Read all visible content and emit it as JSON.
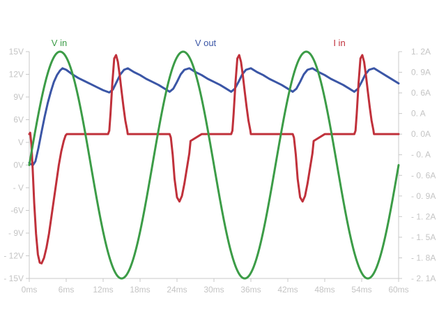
{
  "chart_data": {
    "type": "line",
    "title": "",
    "xlabel": "",
    "ylabel": "",
    "y2label": "",
    "grid": false,
    "legend": "top, above each series",
    "x_unit": "ms",
    "xlim": [
      0,
      60
    ],
    "ylim": [
      -15,
      15
    ],
    "y2lim": [
      -2.1,
      1.2
    ],
    "x_ticks": [
      0,
      6,
      12,
      18,
      24,
      30,
      36,
      42,
      48,
      54,
      60
    ],
    "x_tick_labels": [
      "0ms",
      "6ms",
      "12ms",
      "18ms",
      "24ms",
      "30ms",
      "36ms",
      "42ms",
      "48ms",
      "54ms",
      "60ms"
    ],
    "y_ticks": [
      15,
      12,
      9,
      6,
      3,
      0,
      -3,
      -6,
      -9,
      -12,
      -15
    ],
    "y_tick_labels": [
      "15V",
      "12V",
      "9V",
      "6V",
      "V",
      "0V",
      "-   V",
      "-6V",
      "- 9V",
      "- 12V",
      "- 15V"
    ],
    "y2_ticks": [
      1.2,
      0.9,
      0.6,
      0.3,
      0.0,
      -0.3,
      -0.6,
      -0.9,
      -1.2,
      -1.5,
      -1.8,
      -2.1
    ],
    "y2_tick_labels": [
      "1. 2A",
      "0. 9A",
      "0. 6A",
      "0.   A",
      "0. 0A",
      "- 0.   A",
      "- 0. 6A",
      "- 0. 9A",
      "- 1. 2A",
      "- 1. 5A",
      "- 1. 8A",
      "- 2. 1A"
    ],
    "series": [
      {
        "name": "V in",
        "color": "#3c9c47",
        "axis": "left",
        "x": [
          0,
          1.25,
          2.5,
          3.75,
          5,
          6.25,
          7.5,
          8.75,
          10,
          11.25,
          12.5,
          13.75,
          15,
          16.25,
          17.5,
          18.75,
          20,
          21.25,
          22.5,
          23.75,
          25,
          26.25,
          27.5,
          28.75,
          30,
          31.25,
          32.5,
          33.75,
          35,
          36.25,
          37.5,
          38.75,
          40,
          41.25,
          42.5,
          43.75,
          45,
          46.25,
          47.5,
          48.75,
          50,
          51.25,
          52.5,
          53.75,
          55,
          56.25,
          57.5,
          58.75,
          60
        ],
        "y": [
          0,
          5.7,
          10.6,
          13.9,
          15,
          13.9,
          10.6,
          5.7,
          0,
          -5.7,
          -10.6,
          -13.9,
          -15,
          -13.9,
          -10.6,
          -5.7,
          0,
          5.7,
          10.6,
          13.9,
          15,
          13.9,
          10.6,
          5.7,
          0,
          -5.7,
          -10.6,
          -13.9,
          -15,
          -13.9,
          -10.6,
          -5.7,
          0,
          5.7,
          10.6,
          13.9,
          15,
          13.9,
          10.6,
          5.7,
          0,
          -5.7,
          -10.6,
          -13.9,
          -15,
          -13.9,
          -10.6,
          -5.7,
          0
        ]
      },
      {
        "name": "V out",
        "color": "#3b56a6",
        "axis": "left",
        "x": [
          0,
          0.3,
          0.6,
          1.0,
          1.5,
          2,
          2.5,
          3,
          3.5,
          4,
          4.5,
          5,
          5.4,
          6,
          7,
          8,
          9,
          10,
          11,
          12,
          13,
          13.6,
          14.2,
          14.8,
          15.4,
          16,
          17,
          18,
          19,
          20,
          21,
          22,
          22.8,
          23.4,
          24,
          24.6,
          25.2,
          26,
          27,
          28,
          29,
          30,
          31,
          32,
          32.8,
          33.4,
          34,
          34.6,
          35.2,
          36,
          37,
          38,
          39,
          40,
          41,
          42,
          42.8,
          43.4,
          44,
          44.6,
          45.2,
          46,
          47,
          48,
          49,
          50,
          51,
          52,
          52.8,
          53.4,
          54,
          54.6,
          55.2,
          56,
          57,
          58,
          59,
          60
        ],
        "y": [
          0.3,
          0.1,
          0,
          0.5,
          2.3,
          4.4,
          6.4,
          8.2,
          9.7,
          11.0,
          11.9,
          12.5,
          12.8,
          12.6,
          12.0,
          11.5,
          11.1,
          10.7,
          10.3,
          9.9,
          9.6,
          10.0,
          11.0,
          12.0,
          12.6,
          12.8,
          12.3,
          11.9,
          11.4,
          11.0,
          10.6,
          10.1,
          9.7,
          10.1,
          11.0,
          12.0,
          12.6,
          12.8,
          12.3,
          11.9,
          11.4,
          11.0,
          10.6,
          10.1,
          9.7,
          10.1,
          11.0,
          12.0,
          12.6,
          12.8,
          12.3,
          11.9,
          11.4,
          11.0,
          10.6,
          10.1,
          9.7,
          10.1,
          11.0,
          12.0,
          12.6,
          12.8,
          12.3,
          11.9,
          11.4,
          11.0,
          10.6,
          10.1,
          9.7,
          10.1,
          11.0,
          12.0,
          12.6,
          12.8,
          12.3,
          11.8,
          11.3,
          10.8
        ]
      },
      {
        "name": "I in",
        "color": "#c0313b",
        "axis": "right",
        "x": [
          0,
          0.15,
          0.35,
          0.55,
          0.8,
          1.1,
          1.4,
          1.7,
          2.0,
          2.4,
          2.8,
          3.2,
          3.6,
          4.0,
          4.4,
          4.8,
          5.2,
          5.6,
          5.9,
          6.1,
          8,
          10,
          12,
          12.8,
          13.0,
          13.2,
          13.5,
          13.8,
          14.1,
          14.4,
          14.7,
          15.0,
          15.3,
          15.6,
          15.9,
          16.0,
          18,
          20,
          22,
          22.8,
          23.0,
          23.3,
          23.6,
          24.0,
          24.4,
          24.8,
          25.2,
          25.6,
          26.0,
          26.2,
          28,
          30,
          32,
          32.8,
          33.0,
          33.2,
          33.5,
          33.8,
          34.1,
          34.4,
          34.7,
          35.0,
          35.3,
          35.6,
          35.9,
          36.0,
          38,
          40,
          42,
          42.8,
          43.0,
          43.3,
          43.6,
          44.0,
          44.4,
          44.8,
          45.2,
          45.6,
          46.0,
          46.2,
          48,
          50,
          52,
          52.8,
          53.0,
          53.2,
          53.5,
          53.8,
          54.1,
          54.4,
          54.7,
          55.0,
          55.3,
          55.6,
          55.9,
          56.0,
          58,
          60
        ],
        "y": [
          0.0,
          0.02,
          -0.15,
          -0.5,
          -1.0,
          -1.45,
          -1.75,
          -1.87,
          -1.88,
          -1.8,
          -1.65,
          -1.45,
          -1.2,
          -0.95,
          -0.7,
          -0.45,
          -0.25,
          -0.1,
          -0.02,
          0.0,
          0.0,
          0.0,
          0.0,
          0.0,
          0.05,
          0.3,
          0.75,
          1.1,
          1.15,
          1.05,
          0.85,
          0.62,
          0.4,
          0.2,
          0.06,
          0.0,
          0.0,
          0.0,
          0.0,
          0.0,
          -0.05,
          -0.3,
          -0.65,
          -0.92,
          -0.98,
          -0.9,
          -0.72,
          -0.5,
          -0.28,
          -0.1,
          0.0,
          0.0,
          0.0,
          0.0,
          0.05,
          0.3,
          0.75,
          1.1,
          1.15,
          1.05,
          0.85,
          0.62,
          0.4,
          0.2,
          0.06,
          0.0,
          0.0,
          0.0,
          0.0,
          0.0,
          -0.05,
          -0.3,
          -0.65,
          -0.92,
          -0.98,
          -0.9,
          -0.72,
          -0.5,
          -0.28,
          -0.1,
          0.0,
          0.0,
          0.0,
          0.0,
          0.05,
          0.3,
          0.75,
          1.1,
          1.15,
          1.05,
          0.85,
          0.62,
          0.4,
          0.2,
          0.06,
          0.0,
          0.0,
          0.0
        ]
      }
    ]
  }
}
